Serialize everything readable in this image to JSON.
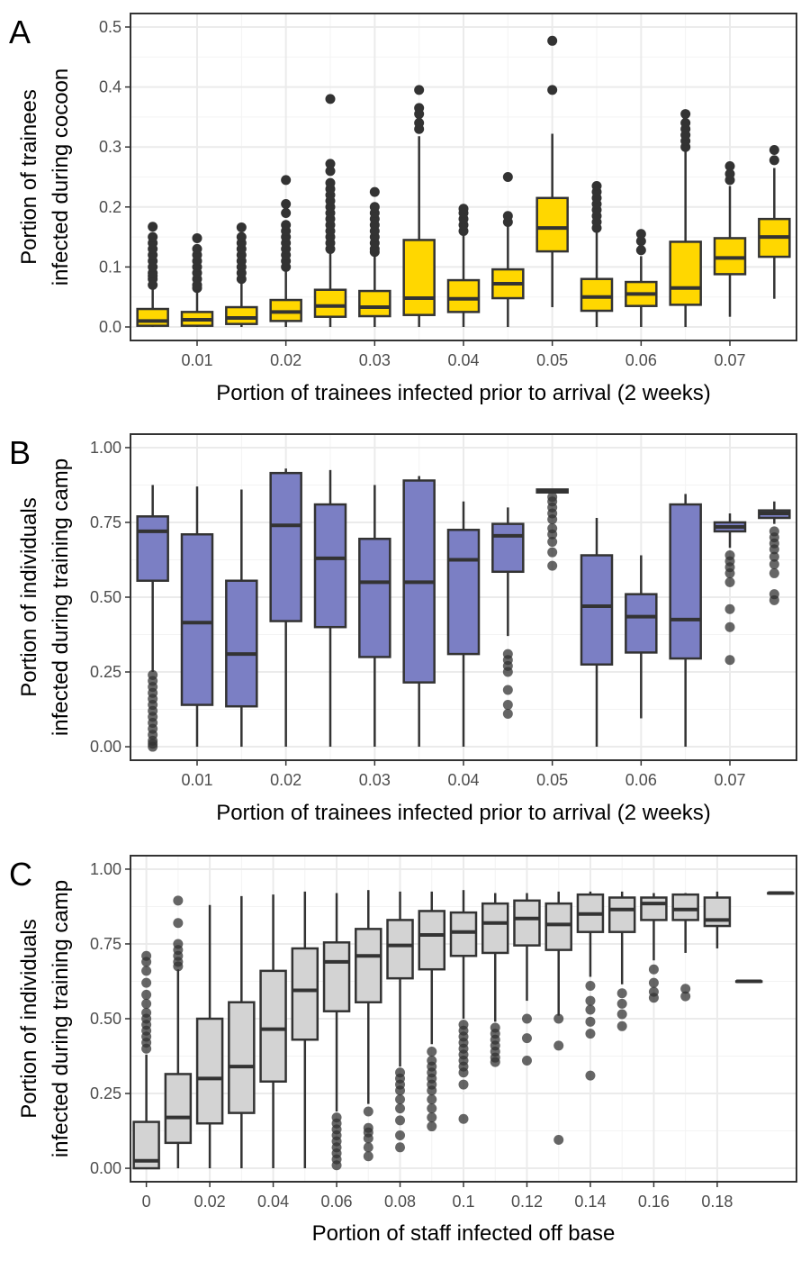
{
  "chart_data": [
    {
      "panel": "A",
      "type": "box",
      "xlabel": "Portion of trainees infected prior to arrival (2 weeks)",
      "ylabel": [
        "Portion of trainees",
        "infected during cocoon"
      ],
      "ylim": [
        0,
        0.5
      ],
      "yticks": [
        "0.0",
        "0.1",
        "0.2",
        "0.3",
        "0.4",
        "0.5"
      ],
      "xlim": [
        0.0025,
        0.0775
      ],
      "xticks": [
        "0.01",
        "0.02",
        "0.03",
        "0.04",
        "0.05",
        "0.06",
        "0.07"
      ],
      "fill_color": "#FFD700",
      "grid": true,
      "boxes": [
        {
          "x": 0.005,
          "lo": 0.0,
          "q1": 0.002,
          "med": 0.01,
          "q3": 0.03,
          "hi": 0.066,
          "outliers": [
            0.07,
            0.08,
            0.085,
            0.09,
            0.1,
            0.11,
            0.12,
            0.13,
            0.14,
            0.15,
            0.167
          ]
        },
        {
          "x": 0.01,
          "lo": 0.0,
          "q1": 0.002,
          "med": 0.012,
          "q3": 0.025,
          "hi": 0.06,
          "outliers": [
            0.065,
            0.07,
            0.08,
            0.09,
            0.1,
            0.11,
            0.12,
            0.13,
            0.148
          ]
        },
        {
          "x": 0.015,
          "lo": 0.0,
          "q1": 0.005,
          "med": 0.015,
          "q3": 0.033,
          "hi": 0.075,
          "outliers": [
            0.08,
            0.09,
            0.1,
            0.11,
            0.12,
            0.13,
            0.14,
            0.15,
            0.166
          ]
        },
        {
          "x": 0.02,
          "lo": 0.0,
          "q1": 0.01,
          "med": 0.025,
          "q3": 0.045,
          "hi": 0.095,
          "outliers": [
            0.1,
            0.11,
            0.12,
            0.13,
            0.14,
            0.15,
            0.16,
            0.17,
            0.19,
            0.205,
            0.245
          ]
        },
        {
          "x": 0.025,
          "lo": 0.0,
          "q1": 0.017,
          "med": 0.035,
          "q3": 0.062,
          "hi": 0.125,
          "outliers": [
            0.13,
            0.14,
            0.15,
            0.16,
            0.17,
            0.18,
            0.19,
            0.2,
            0.21,
            0.22,
            0.23,
            0.24,
            0.26,
            0.272,
            0.38
          ]
        },
        {
          "x": 0.03,
          "lo": 0.0,
          "q1": 0.018,
          "med": 0.033,
          "q3": 0.06,
          "hi": 0.12,
          "outliers": [
            0.125,
            0.13,
            0.14,
            0.15,
            0.16,
            0.17,
            0.18,
            0.19,
            0.2,
            0.225
          ]
        },
        {
          "x": 0.035,
          "lo": 0.0,
          "q1": 0.02,
          "med": 0.048,
          "q3": 0.145,
          "hi": 0.318,
          "outliers": [
            0.33,
            0.34,
            0.355,
            0.365,
            0.395
          ]
        },
        {
          "x": 0.04,
          "lo": 0.0,
          "q1": 0.025,
          "med": 0.047,
          "q3": 0.078,
          "hi": 0.155,
          "outliers": [
            0.16,
            0.17,
            0.18,
            0.19,
            0.197
          ]
        },
        {
          "x": 0.045,
          "lo": 0.0,
          "q1": 0.048,
          "med": 0.072,
          "q3": 0.096,
          "hi": 0.17,
          "outliers": [
            0.175,
            0.185,
            0.25
          ]
        },
        {
          "x": 0.05,
          "lo": 0.033,
          "q1": 0.126,
          "med": 0.165,
          "q3": 0.215,
          "hi": 0.322,
          "outliers": [
            0.395,
            0.477
          ]
        },
        {
          "x": 0.055,
          "lo": 0.0,
          "q1": 0.027,
          "med": 0.05,
          "q3": 0.08,
          "hi": 0.16,
          "outliers": [
            0.165,
            0.175,
            0.185,
            0.195,
            0.205,
            0.215,
            0.225,
            0.235
          ]
        },
        {
          "x": 0.06,
          "lo": 0.0,
          "q1": 0.035,
          "med": 0.055,
          "q3": 0.075,
          "hi": 0.118,
          "outliers": [
            0.128,
            0.143,
            0.155
          ]
        },
        {
          "x": 0.065,
          "lo": 0.0,
          "q1": 0.037,
          "med": 0.065,
          "q3": 0.142,
          "hi": 0.292,
          "outliers": [
            0.3,
            0.31,
            0.32,
            0.33,
            0.34,
            0.355
          ]
        },
        {
          "x": 0.07,
          "lo": 0.017,
          "q1": 0.088,
          "med": 0.115,
          "q3": 0.148,
          "hi": 0.235,
          "outliers": [
            0.245,
            0.255,
            0.268
          ]
        },
        {
          "x": 0.075,
          "lo": 0.047,
          "q1": 0.117,
          "med": 0.15,
          "q3": 0.18,
          "hi": 0.265,
          "outliers": [
            0.278,
            0.295
          ]
        }
      ]
    },
    {
      "panel": "B",
      "type": "box",
      "xlabel": "Portion of trainees infected prior to arrival (2 weeks)",
      "ylabel": [
        "Portion of individuals",
        "infected during training camp"
      ],
      "ylim": [
        0,
        1
      ],
      "yticks": [
        "0.00",
        "0.25",
        "0.50",
        "0.75",
        "1.00"
      ],
      "xlim": [
        0.0025,
        0.0775
      ],
      "xticks": [
        "0.01",
        "0.02",
        "0.03",
        "0.04",
        "0.05",
        "0.06",
        "0.07"
      ],
      "fill_color": "#7B7FC4",
      "grid": true,
      "boxes": [
        {
          "x": 0.005,
          "lo": 0.25,
          "q1": 0.555,
          "med": 0.72,
          "q3": 0.77,
          "hi": 0.875,
          "outliers": [
            0.0,
            0.01,
            0.02,
            0.04,
            0.06,
            0.08,
            0.1,
            0.12,
            0.14,
            0.16,
            0.18,
            0.2,
            0.22,
            0.24
          ]
        },
        {
          "x": 0.01,
          "lo": 0.0,
          "q1": 0.14,
          "med": 0.415,
          "q3": 0.71,
          "hi": 0.87,
          "outliers": []
        },
        {
          "x": 0.015,
          "lo": 0.0,
          "q1": 0.135,
          "med": 0.31,
          "q3": 0.555,
          "hi": 0.86,
          "outliers": []
        },
        {
          "x": 0.02,
          "lo": 0.0,
          "q1": 0.42,
          "med": 0.74,
          "q3": 0.915,
          "hi": 0.93,
          "outliers": []
        },
        {
          "x": 0.025,
          "lo": 0.0,
          "q1": 0.4,
          "med": 0.63,
          "q3": 0.81,
          "hi": 0.925,
          "outliers": []
        },
        {
          "x": 0.03,
          "lo": 0.0,
          "q1": 0.3,
          "med": 0.55,
          "q3": 0.695,
          "hi": 0.875,
          "outliers": []
        },
        {
          "x": 0.035,
          "lo": 0.0,
          "q1": 0.215,
          "med": 0.55,
          "q3": 0.89,
          "hi": 0.905,
          "outliers": []
        },
        {
          "x": 0.04,
          "lo": 0.0,
          "q1": 0.31,
          "med": 0.625,
          "q3": 0.725,
          "hi": 0.82,
          "outliers": []
        },
        {
          "x": 0.045,
          "lo": 0.37,
          "q1": 0.585,
          "med": 0.705,
          "q3": 0.745,
          "hi": 0.8,
          "outliers": [
            0.11,
            0.14,
            0.19,
            0.25,
            0.27,
            0.29,
            0.31
          ]
        },
        {
          "x": 0.05,
          "lo": 0.85,
          "q1": 0.85,
          "med": 0.855,
          "q3": 0.86,
          "hi": 0.86,
          "outliers": [
            0.605,
            0.65,
            0.685,
            0.71,
            0.73,
            0.76,
            0.78,
            0.8,
            0.82,
            0.835
          ]
        },
        {
          "x": 0.055,
          "lo": 0.0,
          "q1": 0.275,
          "med": 0.47,
          "q3": 0.64,
          "hi": 0.765,
          "outliers": []
        },
        {
          "x": 0.06,
          "lo": 0.095,
          "q1": 0.315,
          "med": 0.435,
          "q3": 0.51,
          "hi": 0.64,
          "outliers": []
        },
        {
          "x": 0.065,
          "lo": 0.0,
          "q1": 0.295,
          "med": 0.425,
          "q3": 0.81,
          "hi": 0.845,
          "outliers": []
        },
        {
          "x": 0.07,
          "lo": 0.665,
          "q1": 0.72,
          "med": 0.735,
          "q3": 0.75,
          "hi": 0.78,
          "outliers": [
            0.29,
            0.4,
            0.46,
            0.55,
            0.58,
            0.6,
            0.62,
            0.64
          ]
        },
        {
          "x": 0.075,
          "lo": 0.745,
          "q1": 0.765,
          "med": 0.78,
          "q3": 0.79,
          "hi": 0.82,
          "outliers": [
            0.49,
            0.51,
            0.58,
            0.61,
            0.635,
            0.66,
            0.68,
            0.7,
            0.72
          ]
        }
      ]
    },
    {
      "panel": "C",
      "type": "box",
      "xlabel": "Portion of staff infected off base",
      "ylabel": [
        "Portion of individuals",
        "infected during training camp"
      ],
      "ylim": [
        0,
        1
      ],
      "yticks": [
        "0.00",
        "0.25",
        "0.50",
        "0.75",
        "1.00"
      ],
      "xlim": [
        -0.005,
        0.205
      ],
      "xticks": [
        "0",
        "0.02",
        "0.04",
        "0.06",
        "0.08",
        "0.1",
        "0.12",
        "0.14",
        "0.16",
        "0.18"
      ],
      "fill_color": "#D3D3D3",
      "grid": true,
      "boxes": [
        {
          "x": 0.0,
          "lo": 0.0,
          "q1": 0.0,
          "med": 0.025,
          "q3": 0.155,
          "hi": 0.38,
          "outliers": [
            0.4,
            0.42,
            0.44,
            0.46,
            0.48,
            0.5,
            0.52,
            0.55,
            0.58,
            0.62,
            0.66,
            0.69,
            0.71
          ]
        },
        {
          "x": 0.01,
          "lo": 0.0,
          "q1": 0.085,
          "med": 0.17,
          "q3": 0.315,
          "hi": 0.665,
          "outliers": [
            0.675,
            0.69,
            0.71,
            0.73,
            0.75,
            0.82,
            0.895
          ]
        },
        {
          "x": 0.02,
          "lo": 0.0,
          "q1": 0.15,
          "med": 0.3,
          "q3": 0.5,
          "hi": 0.88,
          "outliers": []
        },
        {
          "x": 0.03,
          "lo": 0.0,
          "q1": 0.185,
          "med": 0.34,
          "q3": 0.555,
          "hi": 0.91,
          "outliers": []
        },
        {
          "x": 0.04,
          "lo": 0.0,
          "q1": 0.29,
          "med": 0.465,
          "q3": 0.66,
          "hi": 0.915,
          "outliers": []
        },
        {
          "x": 0.05,
          "lo": 0.0,
          "q1": 0.43,
          "med": 0.595,
          "q3": 0.735,
          "hi": 0.925,
          "outliers": []
        },
        {
          "x": 0.06,
          "lo": 0.19,
          "q1": 0.525,
          "med": 0.69,
          "q3": 0.755,
          "hi": 0.92,
          "outliers": [
            0.01,
            0.03,
            0.05,
            0.07,
            0.09,
            0.11,
            0.13,
            0.15,
            0.17
          ]
        },
        {
          "x": 0.07,
          "lo": 0.215,
          "q1": 0.555,
          "med": 0.71,
          "q3": 0.8,
          "hi": 0.93,
          "outliers": [
            0.04,
            0.07,
            0.1,
            0.12,
            0.135,
            0.19
          ]
        },
        {
          "x": 0.08,
          "lo": 0.34,
          "q1": 0.635,
          "med": 0.745,
          "q3": 0.83,
          "hi": 0.925,
          "outliers": [
            0.07,
            0.11,
            0.16,
            0.2,
            0.23,
            0.26,
            0.28,
            0.3,
            0.32
          ]
        },
        {
          "x": 0.09,
          "lo": 0.415,
          "q1": 0.665,
          "med": 0.78,
          "q3": 0.86,
          "hi": 0.925,
          "outliers": [
            0.14,
            0.17,
            0.2,
            0.23,
            0.26,
            0.28,
            0.3,
            0.32,
            0.34,
            0.36,
            0.39
          ]
        },
        {
          "x": 0.1,
          "lo": 0.5,
          "q1": 0.71,
          "med": 0.79,
          "q3": 0.855,
          "hi": 0.93,
          "outliers": [
            0.165,
            0.28,
            0.32,
            0.34,
            0.36,
            0.38,
            0.4,
            0.42,
            0.44,
            0.46,
            0.48
          ]
        },
        {
          "x": 0.11,
          "lo": 0.49,
          "q1": 0.72,
          "med": 0.82,
          "q3": 0.885,
          "hi": 0.92,
          "outliers": [
            0.355,
            0.37,
            0.39,
            0.41,
            0.43,
            0.45,
            0.47
          ]
        },
        {
          "x": 0.12,
          "lo": 0.56,
          "q1": 0.745,
          "med": 0.835,
          "q3": 0.895,
          "hi": 0.92,
          "outliers": [
            0.36,
            0.435,
            0.5
          ]
        },
        {
          "x": 0.13,
          "lo": 0.51,
          "q1": 0.73,
          "med": 0.815,
          "q3": 0.885,
          "hi": 0.925,
          "outliers": [
            0.095,
            0.41,
            0.5
          ]
        },
        {
          "x": 0.14,
          "lo": 0.64,
          "q1": 0.79,
          "med": 0.85,
          "q3": 0.915,
          "hi": 0.925,
          "outliers": [
            0.31,
            0.45,
            0.49,
            0.53,
            0.56,
            0.61
          ]
        },
        {
          "x": 0.15,
          "lo": 0.615,
          "q1": 0.79,
          "med": 0.865,
          "q3": 0.905,
          "hi": 0.925,
          "outliers": [
            0.475,
            0.515,
            0.55,
            0.585
          ]
        },
        {
          "x": 0.16,
          "lo": 0.695,
          "q1": 0.83,
          "med": 0.885,
          "q3": 0.905,
          "hi": 0.92,
          "outliers": [
            0.57,
            0.59,
            0.62,
            0.665
          ]
        },
        {
          "x": 0.17,
          "lo": 0.72,
          "q1": 0.83,
          "med": 0.865,
          "q3": 0.915,
          "hi": 0.92,
          "outliers": [
            0.575,
            0.6
          ]
        },
        {
          "x": 0.18,
          "lo": 0.735,
          "q1": 0.81,
          "med": 0.83,
          "q3": 0.905,
          "hi": 0.925,
          "outliers": []
        },
        {
          "x": 0.19,
          "lo": 0.625,
          "q1": 0.625,
          "med": 0.625,
          "q3": 0.625,
          "hi": 0.625,
          "outliers": []
        },
        {
          "x": 0.2,
          "lo": 0.92,
          "q1": 0.92,
          "med": 0.92,
          "q3": 0.92,
          "hi": 0.92,
          "outliers": []
        }
      ]
    }
  ]
}
